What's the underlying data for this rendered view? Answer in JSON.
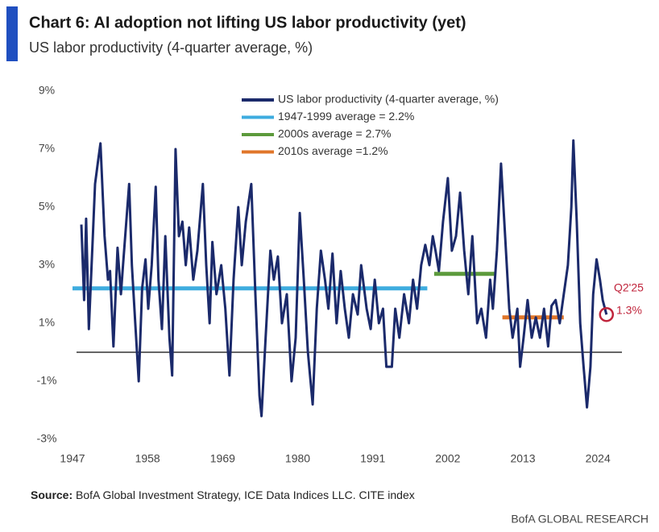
{
  "chart_data": {
    "type": "line",
    "title": "Chart 6: AI adoption not lifting US labor productivity (yet)",
    "subtitle": "US labor productivity (4-quarter average, %)",
    "source_label": "Source:",
    "source": "BofA Global Investment Strategy, ICE Data Indices LLC. CITE index",
    "credit": "BofA GLOBAL RESEARCH",
    "annotations": [
      "Q2'25",
      "1.3%"
    ],
    "xlim": [
      1944,
      2028
    ],
    "xticks": [
      1947,
      1958,
      1969,
      1980,
      1991,
      2002,
      2013,
      2024
    ],
    "ylim": [
      -3,
      9
    ],
    "yticks": [
      {
        "value": 9,
        "label": "9%"
      },
      {
        "value": 7,
        "label": "7%"
      },
      {
        "value": 5,
        "label": "5%"
      },
      {
        "value": 3,
        "label": "3%"
      },
      {
        "value": 1,
        "label": "1%"
      },
      {
        "value": -1,
        "label": "-1%"
      },
      {
        "value": -3,
        "label": "-3%"
      }
    ],
    "series": [
      {
        "name": "US labor productivity (4-quarter average, %)",
        "color": "#1b2a6b",
        "x": [
          1948.3,
          1948.7,
          1949.0,
          1949.4,
          1949.8,
          1950.3,
          1950.7,
          1951.1,
          1951.7,
          1952.2,
          1952.5,
          1953.0,
          1953.6,
          1954.1,
          1954.4,
          1955.3,
          1955.7,
          1956.2,
          1956.7,
          1957.2,
          1957.7,
          1958.1,
          1958.6,
          1959.2,
          1959.6,
          1960.1,
          1960.6,
          1961.2,
          1961.6,
          1962.1,
          1962.6,
          1963.1,
          1963.6,
          1964.1,
          1964.7,
          1965.3,
          1966.1,
          1966.6,
          1967.1,
          1967.5,
          1968.1,
          1968.8,
          1969.4,
          1970.0,
          1970.6,
          1971.3,
          1971.8,
          1972.4,
          1973.2,
          1973.8,
          1974.4,
          1974.7,
          1975.3,
          1976.0,
          1976.5,
          1977.1,
          1977.7,
          1978.4,
          1979.1,
          1979.7,
          1980.3,
          1980.9,
          1981.5,
          1982.2,
          1982.8,
          1983.4,
          1984.0,
          1984.5,
          1985.1,
          1985.7,
          1986.3,
          1986.9,
          1987.5,
          1988.1,
          1988.8,
          1989.3,
          1990.1,
          1990.7,
          1991.3,
          1991.9,
          1992.5,
          1993.0,
          1993.8,
          1994.3,
          1994.9,
          1995.6,
          1996.3,
          1996.9,
          1997.5,
          1998.1,
          1998.7,
          1999.3,
          1999.8,
          2000.2,
          2000.7,
          2001.3,
          2002.0,
          2002.6,
          2003.2,
          2003.8,
          2004.4,
          2005.0,
          2005.6,
          2006.3,
          2006.9,
          2007.6,
          2008.2,
          2008.6,
          2009.2,
          2009.8,
          2010.4,
          2011.0,
          2011.5,
          2012.2,
          2012.6,
          2013.1,
          2013.7,
          2014.3,
          2014.9,
          2015.5,
          2016.1,
          2016.7,
          2017.2,
          2017.8,
          2018.4,
          2019.0,
          2019.6,
          2020.1,
          2020.4,
          2020.9,
          2021.4,
          2021.9,
          2022.4,
          2022.9,
          2023.3,
          2023.8,
          2024.3,
          2024.7,
          2025.25
        ],
        "values": [
          4.4,
          1.8,
          4.6,
          0.8,
          3.0,
          5.8,
          6.5,
          7.2,
          4.0,
          2.5,
          2.8,
          0.2,
          3.6,
          2.0,
          3.0,
          5.8,
          3.0,
          1.0,
          -1.0,
          2.2,
          3.2,
          1.5,
          3.0,
          5.7,
          2.5,
          0.8,
          4.0,
          0.5,
          -0.8,
          7.0,
          4.0,
          4.5,
          3.0,
          4.3,
          2.5,
          3.5,
          5.8,
          3.0,
          1.0,
          3.8,
          2.0,
          3.0,
          1.5,
          -0.8,
          2.5,
          5.0,
          3.0,
          4.5,
          5.8,
          2.0,
          -1.5,
          -2.2,
          0.5,
          3.5,
          2.5,
          3.3,
          1.0,
          2.0,
          -1.0,
          0.5,
          4.8,
          2.5,
          0.0,
          -1.8,
          1.5,
          3.5,
          2.5,
          1.5,
          3.4,
          1.0,
          2.8,
          1.5,
          0.5,
          2.0,
          1.3,
          3.0,
          1.5,
          0.8,
          2.5,
          1.0,
          1.5,
          -0.5,
          -0.5,
          1.5,
          0.5,
          2.0,
          1.0,
          2.5,
          1.5,
          3.0,
          3.7,
          3.0,
          4.0,
          3.5,
          2.8,
          4.5,
          6.0,
          3.5,
          4.0,
          5.5,
          3.5,
          2.0,
          4.0,
          1.0,
          1.5,
          0.5,
          2.5,
          1.5,
          3.5,
          6.5,
          4.0,
          1.5,
          0.5,
          1.5,
          -0.5,
          0.5,
          1.8,
          0.5,
          1.2,
          0.5,
          1.5,
          0.2,
          1.6,
          1.8,
          1.0,
          2.0,
          3.0,
          5.0,
          7.3,
          4.5,
          1.0,
          -0.5,
          -1.9,
          -0.5,
          2.0,
          3.2,
          2.5,
          1.8,
          1.3
        ]
      },
      {
        "name": "1947-1999 average = 2.2%",
        "color": "#3eacdf",
        "x": [
          1947,
          1999
        ],
        "values": [
          2.2,
          2.2
        ]
      },
      {
        "name": "2000s average = 2.7%",
        "color": "#5c9a3c",
        "x": [
          2000,
          2009
        ],
        "values": [
          2.7,
          2.7
        ]
      },
      {
        "name": "2010s average =1.2%",
        "color": "#e0762a",
        "x": [
          2010,
          2019
        ],
        "values": [
          1.2,
          1.2
        ]
      }
    ]
  }
}
